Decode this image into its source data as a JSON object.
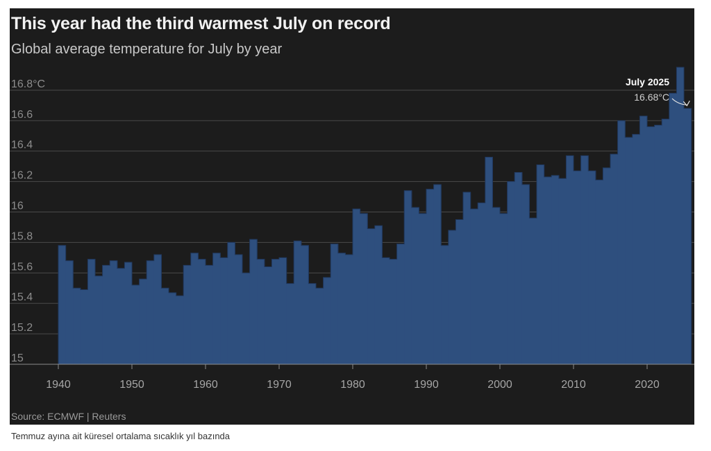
{
  "chart_data": {
    "type": "bar",
    "title": "This year had the third warmest July on record",
    "subtitle": "Global average temperature for July by year",
    "source": "Source: ECMWF | Reuters",
    "xlabel": "",
    "ylabel": "",
    "ylim": [
      15,
      16.9
    ],
    "grid": true,
    "y_ticks": [
      {
        "value": 15,
        "label": "15"
      },
      {
        "value": 15.2,
        "label": "15.2"
      },
      {
        "value": 15.4,
        "label": "15.4"
      },
      {
        "value": 15.6,
        "label": "15.6"
      },
      {
        "value": 15.8,
        "label": "15.8"
      },
      {
        "value": 16,
        "label": "16"
      },
      {
        "value": 16.2,
        "label": "16.2"
      },
      {
        "value": 16.4,
        "label": "16.4"
      },
      {
        "value": 16.6,
        "label": "16.6"
      },
      {
        "value": 16.8,
        "label": "16.8°C"
      }
    ],
    "x_ticks": [
      1940,
      1950,
      1960,
      1970,
      1980,
      1990,
      2000,
      2010,
      2020
    ],
    "years": [
      1940,
      1941,
      1942,
      1943,
      1944,
      1945,
      1946,
      1947,
      1948,
      1949,
      1950,
      1951,
      1952,
      1953,
      1954,
      1955,
      1956,
      1957,
      1958,
      1959,
      1960,
      1961,
      1962,
      1963,
      1964,
      1965,
      1966,
      1967,
      1968,
      1969,
      1970,
      1971,
      1972,
      1973,
      1974,
      1975,
      1976,
      1977,
      1978,
      1979,
      1980,
      1981,
      1982,
      1983,
      1984,
      1985,
      1986,
      1987,
      1988,
      1989,
      1990,
      1991,
      1992,
      1993,
      1994,
      1995,
      1996,
      1997,
      1998,
      1999,
      2000,
      2001,
      2002,
      2003,
      2004,
      2005,
      2006,
      2007,
      2008,
      2009,
      2010,
      2011,
      2012,
      2013,
      2014,
      2015,
      2016,
      2017,
      2018,
      2019,
      2020,
      2021,
      2022,
      2023,
      2024,
      2025
    ],
    "values": [
      15.78,
      15.68,
      15.5,
      15.49,
      15.69,
      15.58,
      15.65,
      15.68,
      15.63,
      15.67,
      15.52,
      15.56,
      15.68,
      15.72,
      15.5,
      15.47,
      15.45,
      15.65,
      15.73,
      15.69,
      15.65,
      15.73,
      15.7,
      15.8,
      15.72,
      15.6,
      15.82,
      15.69,
      15.64,
      15.69,
      15.7,
      15.53,
      15.81,
      15.78,
      15.53,
      15.5,
      15.57,
      15.79,
      15.73,
      15.72,
      16.02,
      15.99,
      15.89,
      15.91,
      15.7,
      15.69,
      15.79,
      16.14,
      16.03,
      15.99,
      16.15,
      16.18,
      15.78,
      15.88,
      15.95,
      16.13,
      16.02,
      16.06,
      16.36,
      16.03,
      15.99,
      16.2,
      16.26,
      16.18,
      15.96,
      16.31,
      16.23,
      16.24,
      16.22,
      16.37,
      16.27,
      16.37,
      16.27,
      16.21,
      16.29,
      16.38,
      16.6,
      16.49,
      16.51,
      16.63,
      16.56,
      16.57,
      16.61,
      16.78,
      16.95,
      16.68
    ],
    "annotation": {
      "year": 2025,
      "label": "July 2025",
      "value_text": "16.68°C"
    },
    "colors": {
      "bar": "#2e4f7e",
      "bar_edge": "#20385e",
      "grid": "#4a4a4a",
      "axis": "#8c8c8c",
      "background": "#1c1c1c"
    }
  },
  "caption": "Temmuz ayına ait küresel ortalama sıcaklık yıl bazında"
}
